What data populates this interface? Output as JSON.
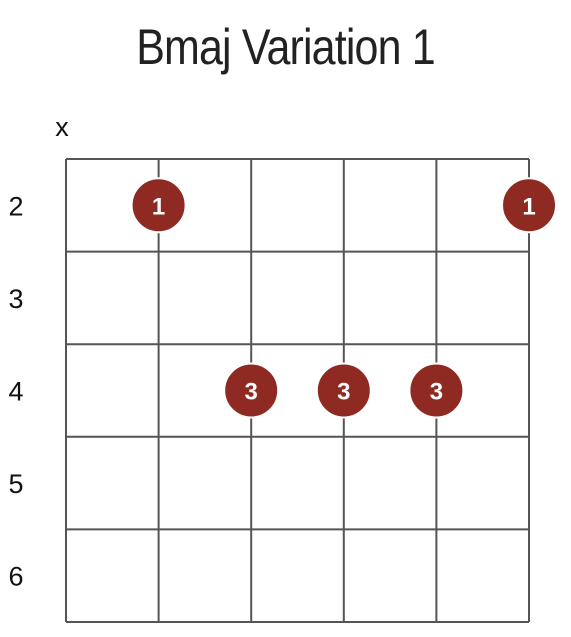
{
  "diagram": {
    "title": "Bmaj Variation 1",
    "strings_count": 6,
    "frets_shown": 5,
    "string_markers": [
      {
        "string": 1,
        "label": "x"
      }
    ],
    "fret_labels": [
      "2",
      "3",
      "4",
      "5",
      "6"
    ],
    "fingerings": [
      {
        "string": 2,
        "fret_row": 1,
        "finger": "1"
      },
      {
        "string": 6,
        "fret_row": 1,
        "finger": "1"
      },
      {
        "string": 3,
        "fret_row": 3,
        "finger": "3"
      },
      {
        "string": 4,
        "fret_row": 3,
        "finger": "3"
      },
      {
        "string": 5,
        "fret_row": 3,
        "finger": "3"
      }
    ],
    "colors": {
      "dot": "#8e2a22",
      "dot_border": "#ffffff",
      "grid": "#555555"
    }
  }
}
